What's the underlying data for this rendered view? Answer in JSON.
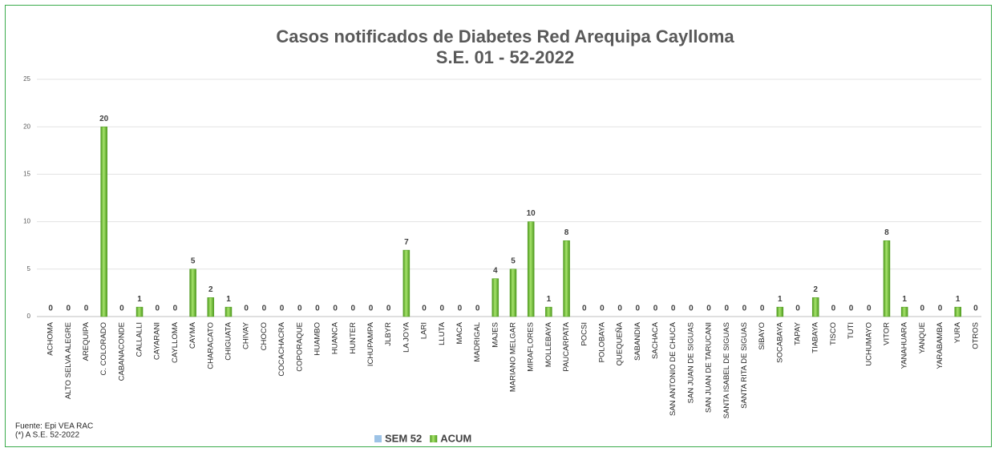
{
  "chart_data": {
    "type": "bar",
    "title": "Casos notificados de Diabetes  Red Arequipa Caylloma",
    "subtitle": "S.E. 01 - 52-2022",
    "categories": [
      "ACHOMA",
      "ALTO SELVA ALEGRE",
      "AREQUIPA",
      "C. COLORADO",
      "CABANACONDE",
      "CALLALLI",
      "CAYARANI",
      "CAYLLOMA",
      "CAYMA",
      "CHARACATO",
      "CHIGUATA",
      "CHIVAY",
      "CHOCO",
      "COCACHACRA",
      "COPORAQUE",
      "HUAMBO",
      "HUANCA",
      "HUNTER",
      "ICHUPAMPA",
      "JLBYR",
      "LA JOYA",
      "LARI",
      "LLUTA",
      "MACA",
      "MADRIGAL",
      "MAJES",
      "MARIANO MELGAR",
      "MIRAFLORES",
      "MOLLEBAYA",
      "PAUCARPATA",
      "POCSI",
      "POLOBAYA",
      "QUEQUEÑA",
      "SABANDIA",
      "SACHACA",
      "SAN ANTONIO DE CHUCA",
      "SAN JUAN DE SIGUAS",
      "SAN JUAN DE TARUCANI",
      "SANTA ISABEL DE SIGUAS",
      "SANTA RITA DE SIGUAS",
      "SIBAYO",
      "SOCABAYA",
      "TAPAY",
      "TIABAYA",
      "TISCO",
      "TUTI",
      "UCHUMAYO",
      "VITOR",
      "YANAHUARA",
      "YANQUE",
      "YARABAMBA",
      "YURA",
      "OTROS"
    ],
    "series": [
      {
        "name": "SEM 52",
        "color": "#9dc3e6",
        "values": [
          0,
          0,
          0,
          0,
          0,
          0,
          0,
          0,
          0,
          0,
          0,
          0,
          0,
          0,
          0,
          0,
          0,
          0,
          0,
          0,
          0,
          0,
          0,
          0,
          0,
          0,
          0,
          0,
          0,
          0,
          0,
          0,
          0,
          0,
          0,
          0,
          0,
          0,
          0,
          0,
          0,
          0,
          0,
          0,
          0,
          0,
          0,
          0,
          0,
          0,
          0,
          0,
          0
        ]
      },
      {
        "name": "ACUM",
        "color": "#7cc242",
        "values": [
          0,
          0,
          0,
          20,
          0,
          1,
          0,
          0,
          5,
          2,
          1,
          0,
          0,
          0,
          0,
          0,
          0,
          0,
          0,
          0,
          7,
          0,
          0,
          0,
          0,
          4,
          5,
          10,
          1,
          8,
          0,
          0,
          0,
          0,
          0,
          0,
          0,
          0,
          0,
          0,
          0,
          1,
          0,
          2,
          0,
          0,
          0,
          8,
          1,
          0,
          0,
          1,
          0
        ]
      }
    ],
    "ylim": [
      0,
      25
    ],
    "yticks": [
      0,
      5,
      10,
      15,
      20,
      25
    ],
    "grid": true,
    "legend": "bottom",
    "footnotes": [
      "Fuente:  Epi VEA RAC",
      "(*) A S.E. 52-2022"
    ]
  }
}
